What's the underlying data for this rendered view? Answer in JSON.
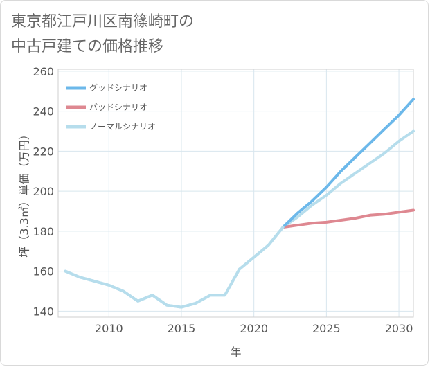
{
  "title_line1": "東京都江戸川区南篠崎町の",
  "title_line2": "中古戸建ての価格推移",
  "chart_data": {
    "type": "line",
    "xlabel": "年",
    "ylabel": "坪（3.3㎡）単価（万円）",
    "xlim": [
      2006.5,
      2031
    ],
    "ylim": [
      137,
      261
    ],
    "xticks": [
      2010,
      2015,
      2020,
      2025,
      2030
    ],
    "yticks": [
      140,
      160,
      180,
      200,
      220,
      240,
      260
    ],
    "grid": true,
    "legend_placement": "top-left",
    "series": [
      {
        "name": "グッドシナリオ",
        "color": "#6cb8ea",
        "x": [
          2022,
          2023,
          2024,
          2025,
          2026,
          2027,
          2028,
          2029,
          2030,
          2031
        ],
        "y": [
          182,
          189,
          195,
          202,
          210,
          217,
          224,
          231,
          238,
          246
        ]
      },
      {
        "name": "バッドシナリオ",
        "color": "#de8891",
        "x": [
          2022,
          2023,
          2024,
          2025,
          2026,
          2027,
          2028,
          2029,
          2030,
          2031
        ],
        "y": [
          182,
          183,
          184,
          184.5,
          185.5,
          186.5,
          188,
          188.5,
          189.5,
          190.5
        ]
      },
      {
        "name": "ノーマルシナリオ",
        "color": "#b6ddec",
        "x": [
          2007,
          2008,
          2009,
          2010,
          2011,
          2012,
          2013,
          2014,
          2015,
          2016,
          2017,
          2018,
          2019,
          2020,
          2021,
          2022,
          2023,
          2024,
          2025,
          2026,
          2027,
          2028,
          2029,
          2030,
          2031
        ],
        "y": [
          160,
          157,
          155,
          153,
          150,
          145,
          148,
          143,
          142,
          144,
          148,
          148,
          161,
          167,
          173,
          182,
          187,
          193,
          198,
          204,
          209,
          214,
          219,
          225,
          230
        ]
      }
    ]
  }
}
